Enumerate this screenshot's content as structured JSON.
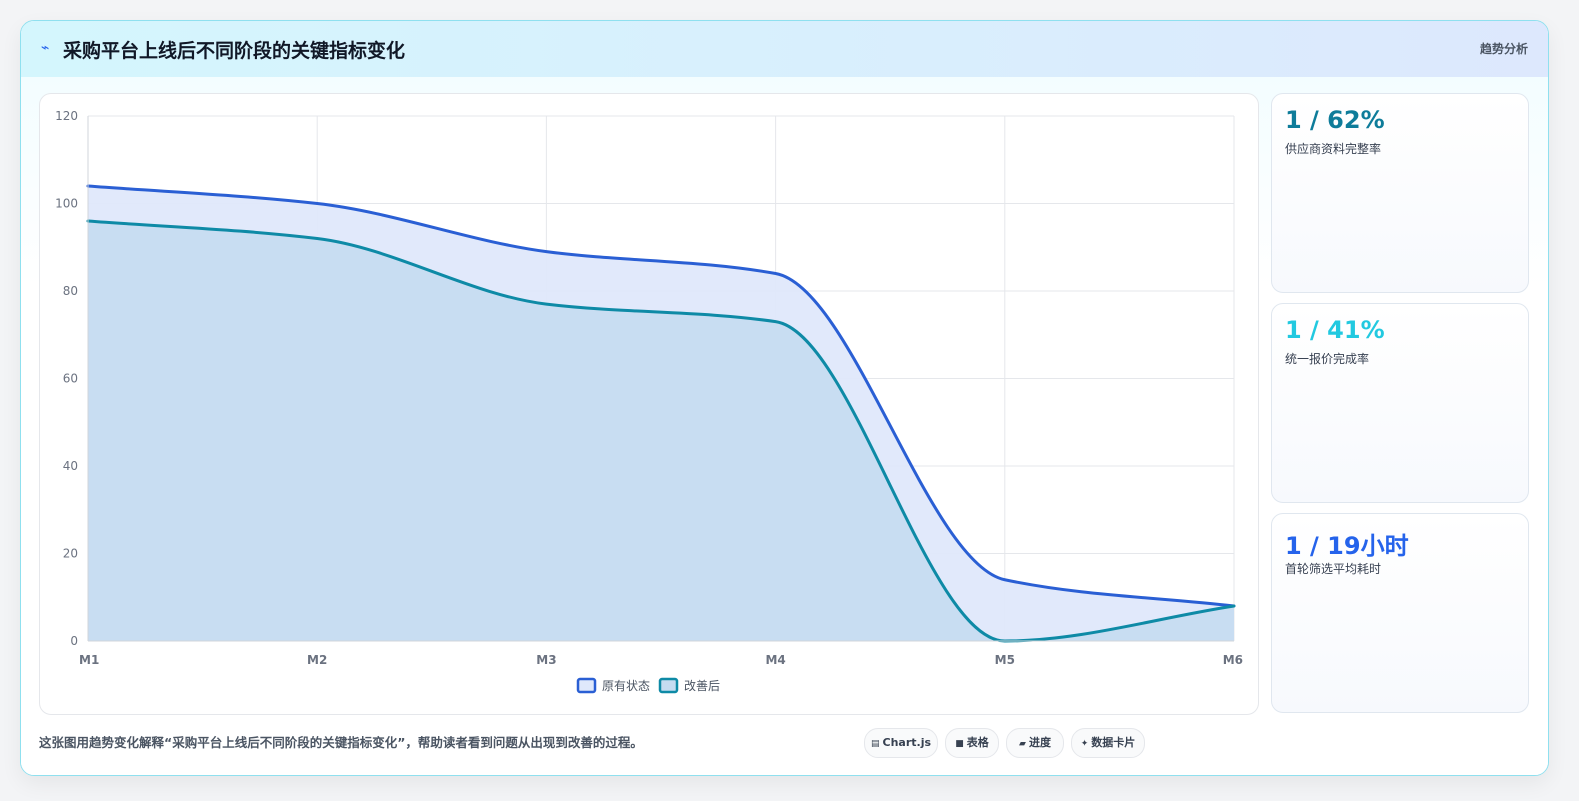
{
  "header": {
    "title": "采购平台上线后不同阶段的关键指标变化",
    "tag": "趋势分析",
    "icon": "lightning-icon"
  },
  "chart_data": {
    "type": "area",
    "categories": [
      "M1",
      "M2",
      "M3",
      "M4",
      "M5",
      "M6"
    ],
    "ylim": [
      0,
      120
    ],
    "yticks": [
      "0",
      "20",
      "40",
      "60",
      "80",
      "100",
      "120"
    ],
    "grid": true,
    "legend_position": "bottom",
    "series": [
      {
        "name": "原有状态",
        "values": [
          104,
          100,
          89,
          84,
          14,
          8
        ],
        "color": "#2a5fd4",
        "fill": "#dfe8fb"
      },
      {
        "name": "改善后",
        "values": [
          96,
          92,
          77,
          73,
          0,
          8
        ],
        "color": "#0e8aa6",
        "fill": "#c5dcf1"
      }
    ]
  },
  "side_cards": [
    {
      "value": "1 / 62%",
      "label": "供应商资料完整率",
      "color": "#0e7c9a"
    },
    {
      "value": "1 / 41%",
      "label": "统一报价完成率",
      "color": "#22c9e0"
    },
    {
      "value": "1 / 19小时",
      "label": "首轮筛选平均耗时",
      "color": "#2563eb"
    }
  ],
  "footer": {
    "description": "这张图用趋势变化解释“采购平台上线后不同阶段的关键指标变化”，帮助读者看到问题从出现到改善的过程。",
    "chips": [
      {
        "label": "Chart.js",
        "icon": "chart-icon"
      },
      {
        "label": "表格",
        "icon": "table-icon"
      },
      {
        "label": "进度",
        "icon": "progress-icon"
      },
      {
        "label": "数据卡片",
        "icon": "card-icon"
      }
    ]
  }
}
